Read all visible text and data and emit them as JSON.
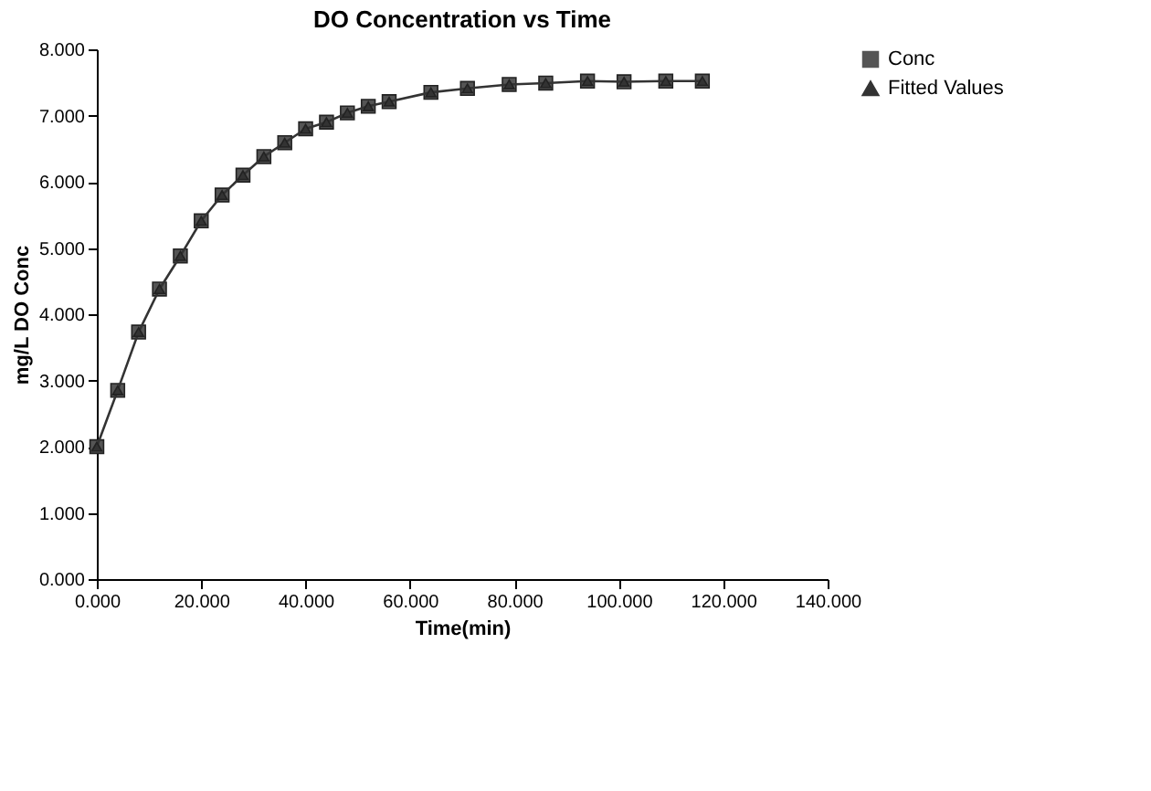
{
  "chart_data": {
    "type": "line",
    "title": "DO Concentration vs Time",
    "xlabel": "Time(min)",
    "ylabel": "mg/L DO Conc",
    "x": [
      0,
      4,
      8,
      12,
      16,
      20,
      24,
      28,
      32,
      36,
      40,
      44,
      48,
      52,
      56,
      64,
      71,
      79,
      86,
      94,
      101,
      109,
      116
    ],
    "series": [
      {
        "name": "Conc",
        "type": "scatter",
        "marker": "square",
        "color": "#555555",
        "values": [
          2.0,
          2.85,
          3.73,
          4.38,
          4.88,
          5.41,
          5.8,
          6.1,
          6.38,
          6.59,
          6.8,
          6.9,
          7.04,
          7.14,
          7.21,
          7.35,
          7.41,
          7.47,
          7.49,
          7.52,
          7.51,
          7.52,
          7.52
        ]
      },
      {
        "name": "Fitted Values",
        "type": "line",
        "marker": "triangle",
        "color": "#333333",
        "values": [
          2.0,
          2.85,
          3.73,
          4.38,
          4.88,
          5.41,
          5.8,
          6.1,
          6.38,
          6.59,
          6.8,
          6.9,
          7.04,
          7.14,
          7.21,
          7.35,
          7.41,
          7.47,
          7.49,
          7.52,
          7.51,
          7.52,
          7.52
        ]
      }
    ],
    "xlim": [
      0,
      140
    ],
    "xticks": [
      {
        "value": 0,
        "label": "0.000"
      },
      {
        "value": 20,
        "label": "20.000"
      },
      {
        "value": 40,
        "label": "40.000"
      },
      {
        "value": 60,
        "label": "60.000"
      },
      {
        "value": 80,
        "label": "80.000"
      },
      {
        "value": 100,
        "label": "100.000"
      },
      {
        "value": 120,
        "label": "120.000"
      },
      {
        "value": 140,
        "label": "140.000"
      }
    ],
    "ylim": [
      0,
      8
    ],
    "yticks": [
      {
        "value": 0,
        "label": "0.000"
      },
      {
        "value": 1,
        "label": "1.000"
      },
      {
        "value": 2,
        "label": "2.000"
      },
      {
        "value": 3,
        "label": "3.000"
      },
      {
        "value": 4,
        "label": "4.000"
      },
      {
        "value": 5,
        "label": "5.000"
      },
      {
        "value": 6,
        "label": "6.000"
      },
      {
        "value": 7,
        "label": "7.000"
      },
      {
        "value": 8,
        "label": "8.000"
      }
    ],
    "grid": false,
    "legend": "right"
  }
}
